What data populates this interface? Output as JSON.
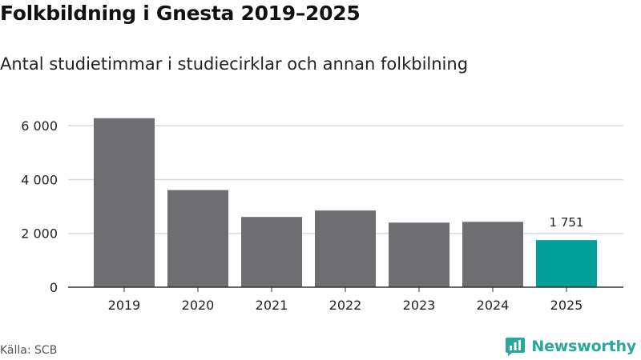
{
  "header": {
    "title": "Folkbildning i Gnesta 2019–2025",
    "subtitle": "Antal studietimmar i studiecirklar och annan folkbilning"
  },
  "chart_data": {
    "type": "bar",
    "categories": [
      "2019",
      "2020",
      "2021",
      "2022",
      "2023",
      "2024",
      "2025"
    ],
    "values": [
      6280,
      3610,
      2610,
      2850,
      2400,
      2430,
      1751
    ],
    "highlight_index": 6,
    "highlight_label": "1 751",
    "yticks": [
      0,
      2000,
      4000,
      6000
    ],
    "ytick_labels": [
      "0",
      "2 000",
      "4 000",
      "6 000"
    ],
    "ylim": [
      0,
      6600
    ],
    "grid": true,
    "legend": "none",
    "colors": {
      "bar": "#6e6d72",
      "highlight": "#00a099",
      "grid": "#d9d9d9",
      "axis": "#333333"
    }
  },
  "footer": {
    "source": "Källa: SCB",
    "brand": "Newsworthy",
    "brand_icon": "newsworthy-logo-icon",
    "brand_color": "#2aa79b"
  }
}
